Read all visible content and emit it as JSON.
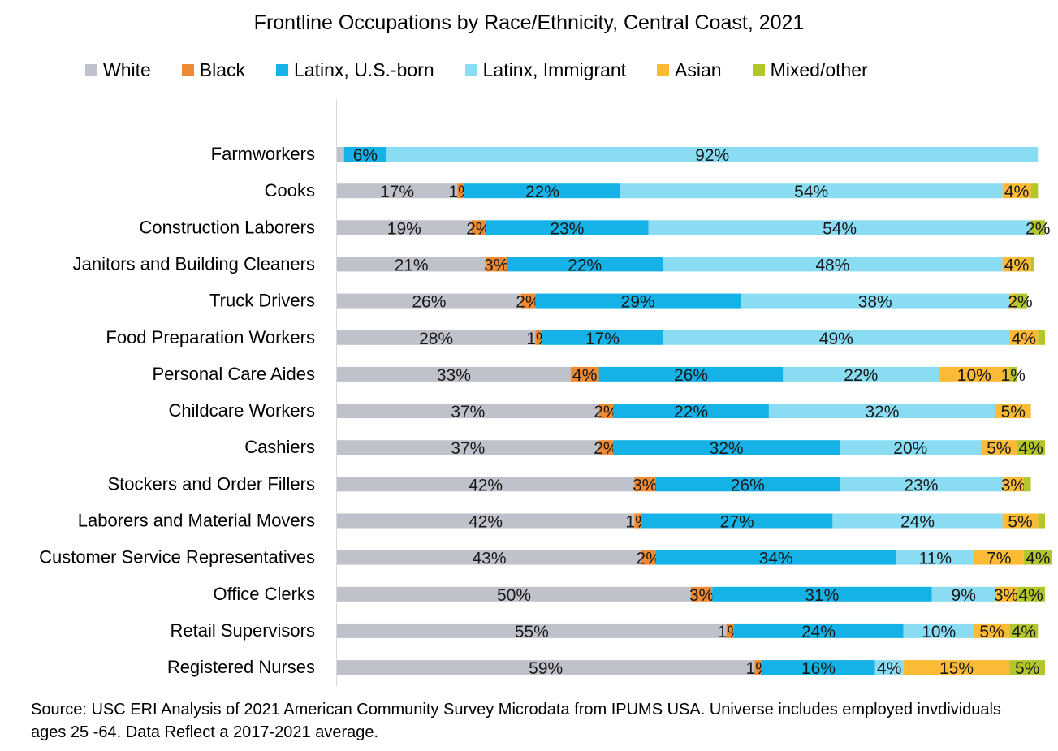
{
  "chart_data": {
    "type": "bar",
    "orientation": "horizontal",
    "stacked": true,
    "title": "Frontline Occupations by Race/Ethnicity, Central Coast, 2021",
    "xlabel": "",
    "ylabel": "",
    "xlim": [
      0,
      100
    ],
    "unit": "%",
    "grid": false,
    "legend_position": "top",
    "categories": [
      "Farmworkers",
      "Cooks",
      "Construction Laborers",
      "Janitors and Building Cleaners",
      "Truck Drivers",
      "Food Preparation Workers",
      "Personal Care Aides",
      "Childcare Workers",
      "Cashiers",
      "Stockers and Order Fillers",
      "Laborers and Material Movers",
      "Customer Service Representatives",
      "Office Clerks",
      "Retail Supervisors",
      "Registered Nurses"
    ],
    "series": [
      {
        "name": "White",
        "color": "#bfc2cb",
        "values": [
          1,
          17,
          19,
          21,
          26,
          28,
          33,
          37,
          37,
          42,
          42,
          43,
          50,
          55,
          59
        ],
        "labels": [
          "",
          "17%",
          "19%",
          "21%",
          "26%",
          "28%",
          "33%",
          "37%",
          "37%",
          "42%",
          "42%",
          "43%",
          "50%",
          "55%",
          "59%"
        ]
      },
      {
        "name": "Black",
        "color": "#ee8a33",
        "values": [
          0,
          1,
          2,
          3,
          2,
          1,
          4,
          2,
          2,
          3,
          1,
          2,
          3,
          1,
          1
        ],
        "labels": [
          "",
          "1%",
          "2%",
          "3%",
          "2%",
          "1%",
          "4%",
          "2%",
          "2%",
          "3%",
          "1%",
          "2%",
          "3%",
          "1%",
          "1%"
        ]
      },
      {
        "name": "Latinx, U.S.-born",
        "color": "#14b2e6",
        "values": [
          6,
          22,
          23,
          22,
          29,
          17,
          26,
          22,
          32,
          26,
          27,
          34,
          31,
          24,
          16
        ],
        "labels": [
          "6%",
          "22%",
          "23%",
          "22%",
          "29%",
          "17%",
          "26%",
          "22%",
          "32%",
          "26%",
          "27%",
          "34%",
          "31%",
          "24%",
          "16%"
        ]
      },
      {
        "name": "Latinx, Immigrant",
        "color": "#8adcf3",
        "values": [
          92,
          54,
          54,
          48,
          38,
          49,
          22,
          32,
          20,
          23,
          24,
          11,
          9,
          10,
          4
        ],
        "labels": [
          "92%",
          "54%",
          "54%",
          "48%",
          "38%",
          "49%",
          "22%",
          "32%",
          "20%",
          "23%",
          "24%",
          "11%",
          "9%",
          "10%",
          "4%"
        ]
      },
      {
        "name": "Asian",
        "color": "#fbbb36",
        "values": [
          0,
          4,
          0,
          4,
          0.5,
          4,
          10,
          5,
          5,
          3,
          5,
          7,
          3,
          5,
          15
        ],
        "labels": [
          "",
          "4%",
          "",
          "4%",
          "",
          "4%",
          "10%",
          "5%",
          "5%",
          "3%",
          "5%",
          "7%",
          "3%",
          "5%",
          "15%"
        ]
      },
      {
        "name": "Mixed/other",
        "color": "#b3c62d",
        "values": [
          0,
          1,
          2,
          0.5,
          2,
          1,
          1,
          0,
          4,
          1,
          1,
          4,
          4,
          4,
          5
        ],
        "labels": [
          "",
          "",
          "2%",
          "",
          "2%",
          "",
          "1%",
          "",
          "4%",
          "",
          "",
          "4%",
          "4%",
          "4%",
          "5%"
        ]
      }
    ]
  },
  "source_note": "Source: USC ERI Analysis of 2021 American Community Survey Microdata from IPUMS USA. Universe includes employed invdividuals ages 25 -64. Data Reflect a 2017-2021 average."
}
